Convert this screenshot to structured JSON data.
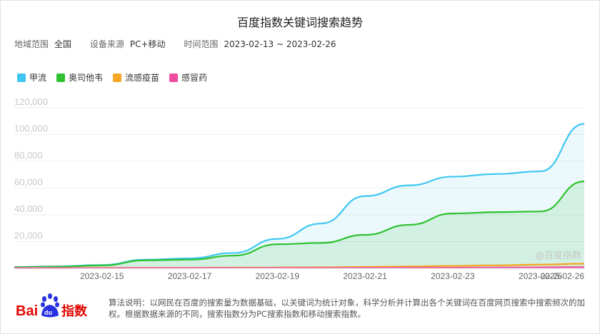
{
  "title": "百度指数关键词搜索趋势",
  "meta": {
    "region_label": "地域范围",
    "region_value": "全国",
    "device_label": "设备来源",
    "device_value": "PC+移动",
    "time_label": "时间范围",
    "time_value": "2023-02-13 ~ 2023-02-26"
  },
  "watermark": "@百度指数",
  "footer": {
    "logo_text": "Bai du 指数",
    "note": "算法说明：以网民在百度的搜索量为数据基础，以关键词为统计对象，科学分析并计算出各个关键词在百度网页搜索中搜索频次的加权。根据数据来源的不同，搜索指数分为PC搜索指数和移动搜索指数。"
  },
  "chart_data": {
    "type": "area",
    "x": [
      "2023-02-13",
      "2023-02-14",
      "2023-02-15",
      "2023-02-16",
      "2023-02-17",
      "2023-02-18",
      "2023-02-19",
      "2023-02-20",
      "2023-02-21",
      "2023-02-22",
      "2023-02-23",
      "2023-02-24",
      "2023-02-25",
      "2023-02-26"
    ],
    "x_tick_labels": [
      "2023-02-15",
      "2023-02-17",
      "2023-02-19",
      "2023-02-21",
      "2023-02-23",
      "2023-02-25",
      "2023-02-26"
    ],
    "ylim": [
      0,
      120000
    ],
    "y_ticks": [
      "120,000",
      "100,000",
      "80,000",
      "60,000",
      "40,000",
      "20,000"
    ],
    "grid": true,
    "legend_position": "top-left",
    "series": [
      {
        "name": "甲流",
        "color": "#3ec7f0",
        "values": [
          1000,
          1500,
          2500,
          6500,
          7500,
          11500,
          22000,
          33500,
          54000,
          62000,
          68500,
          70500,
          72500,
          108000
        ]
      },
      {
        "name": "奥司他韦",
        "color": "#2fc12f",
        "values": [
          800,
          1200,
          2200,
          6000,
          6500,
          9500,
          18000,
          19000,
          25000,
          32500,
          41000,
          42000,
          42500,
          65000
        ]
      },
      {
        "name": "流感疫苗",
        "color": "#f5a623",
        "values": [
          300,
          350,
          400,
          450,
          500,
          550,
          650,
          800,
          1100,
          1400,
          1800,
          2300,
          2800,
          3500
        ]
      },
      {
        "name": "感冒药",
        "color": "#ef4ba0",
        "values": [
          200,
          220,
          240,
          260,
          280,
          300,
          320,
          350,
          400,
          450,
          500,
          600,
          700,
          900
        ]
      }
    ]
  }
}
